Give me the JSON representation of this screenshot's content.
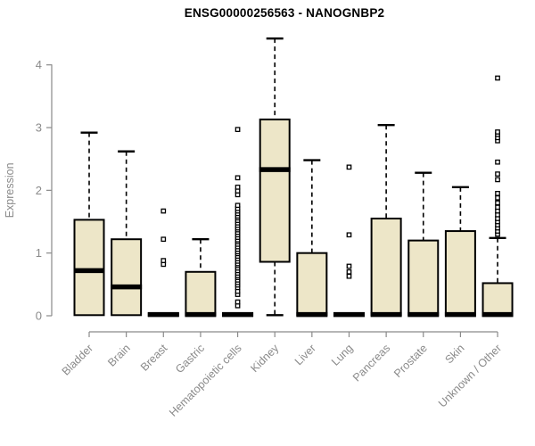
{
  "chart_data": {
    "type": "boxplot",
    "title": "ENSG00000256563 - NANOGNBP2",
    "xlabel": "",
    "ylabel": "Expression",
    "ylim": [
      0,
      4
    ],
    "yticks": [
      0,
      1,
      2,
      3,
      4
    ],
    "grid": false,
    "legend_position": "none",
    "categories": [
      "Bladder",
      "Brain",
      "Breast",
      "Gastric",
      "Hematopoietic cells",
      "Kidney",
      "Liver",
      "Lung",
      "Pancreas",
      "Prostate",
      "Skin",
      "Unknown / Other"
    ],
    "series": [
      {
        "name": "Bladder",
        "whisker_low": 0.01,
        "q1": 0.01,
        "median": 0.72,
        "q3": 1.53,
        "whisker_high": 2.92,
        "outliers": []
      },
      {
        "name": "Brain",
        "whisker_low": 0.01,
        "q1": 0.01,
        "median": 0.46,
        "q3": 1.22,
        "whisker_high": 2.62,
        "outliers": []
      },
      {
        "name": "Breast",
        "whisker_low": 0.0,
        "q1": 0.0,
        "median": 0.02,
        "q3": 0.04,
        "whisker_high": 0.04,
        "outliers": [
          0.82,
          0.88,
          1.22,
          1.67
        ]
      },
      {
        "name": "Gastric",
        "whisker_low": 0.01,
        "q1": 0.01,
        "median": 0.02,
        "q3": 0.7,
        "whisker_high": 1.22,
        "outliers": []
      },
      {
        "name": "Hematopoietic cells",
        "whisker_low": 0.0,
        "q1": 0.0,
        "median": 0.02,
        "q3": 0.04,
        "whisker_high": 0.04,
        "outliers": [
          0.16,
          0.22,
          0.34,
          0.39,
          0.45,
          0.49,
          0.53,
          0.57,
          0.61,
          0.64,
          0.68,
          0.72,
          0.76,
          0.8,
          0.83,
          0.87,
          0.91,
          0.95,
          0.99,
          1.02,
          1.06,
          1.1,
          1.14,
          1.18,
          1.21,
          1.25,
          1.29,
          1.33,
          1.37,
          1.4,
          1.44,
          1.48,
          1.52,
          1.56,
          1.59,
          1.63,
          1.67,
          1.71,
          1.76,
          1.93,
          1.99,
          2.05,
          2.2,
          2.97
        ]
      },
      {
        "name": "Kidney",
        "whisker_low": 0.01,
        "q1": 0.86,
        "median": 2.33,
        "q3": 3.13,
        "whisker_high": 4.42,
        "outliers": []
      },
      {
        "name": "Liver",
        "whisker_low": 0.01,
        "q1": 0.01,
        "median": 0.02,
        "q3": 1.0,
        "whisker_high": 2.48,
        "outliers": []
      },
      {
        "name": "Lung",
        "whisker_low": 0.0,
        "q1": 0.0,
        "median": 0.02,
        "q3": 0.04,
        "whisker_high": 0.04,
        "outliers": [
          0.63,
          0.7,
          0.79,
          1.29,
          2.37
        ]
      },
      {
        "name": "Pancreas",
        "whisker_low": 0.01,
        "q1": 0.01,
        "median": 0.02,
        "q3": 1.55,
        "whisker_high": 3.04,
        "outliers": []
      },
      {
        "name": "Prostate",
        "whisker_low": 0.01,
        "q1": 0.01,
        "median": 0.02,
        "q3": 1.2,
        "whisker_high": 2.28,
        "outliers": []
      },
      {
        "name": "Skin",
        "whisker_low": 0.01,
        "q1": 0.01,
        "median": 0.02,
        "q3": 1.35,
        "whisker_high": 2.05,
        "outliers": []
      },
      {
        "name": "Unknown / Other",
        "whisker_low": 0.01,
        "q1": 0.01,
        "median": 0.02,
        "q3": 0.52,
        "whisker_high": 1.24,
        "outliers": [
          1.3,
          1.35,
          1.4,
          1.45,
          1.5,
          1.55,
          1.61,
          1.67,
          1.73,
          1.8,
          1.88,
          1.95,
          2.17,
          2.26,
          2.45,
          2.79,
          2.84,
          2.89,
          2.93,
          3.79
        ]
      }
    ],
    "colors": {
      "box_fill": "#ede6c8",
      "box_stroke": "#000000",
      "median": "#000000",
      "whisker": "#000000",
      "outlier_fill": "#ffffff",
      "outlier_stroke": "#000000",
      "axis": "#8a8a8a",
      "tick_label": "#8a8a8a",
      "title": "#000000",
      "background": "#ffffff"
    }
  }
}
